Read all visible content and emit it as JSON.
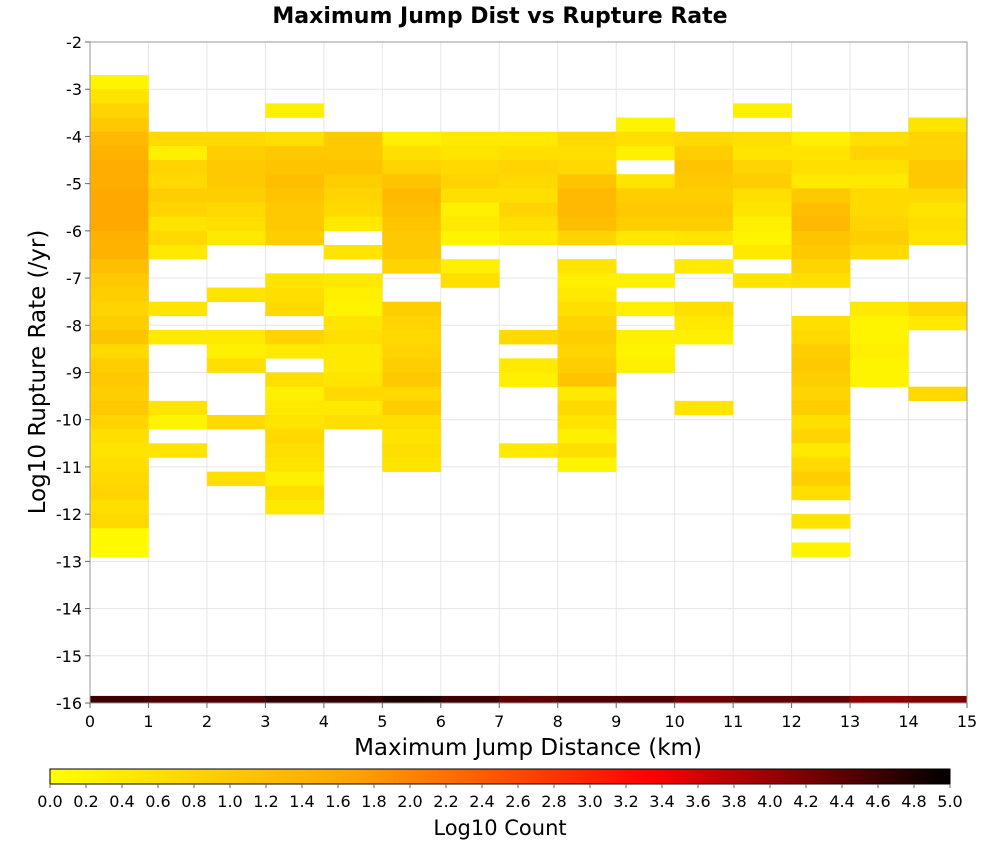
{
  "chart_data": {
    "type": "heatmap",
    "title": "Maximum Jump Dist vs Rupture Rate",
    "xlabel": "Maximum Jump Distance (km)",
    "ylabel": "Log10 Rupture Rate (/yr)",
    "xlim": [
      0,
      15
    ],
    "ylim": [
      -16,
      -2
    ],
    "x_ticks": [
      "0",
      "1",
      "2",
      "3",
      "4",
      "5",
      "6",
      "7",
      "8",
      "9",
      "10",
      "11",
      "12",
      "13",
      "14",
      "15"
    ],
    "y_ticks": [
      "-2",
      "-3",
      "-4",
      "-5",
      "-6",
      "-7",
      "-8",
      "-9",
      "-10",
      "-11",
      "-12",
      "-13",
      "-14",
      "-15",
      "-16"
    ],
    "grid": true,
    "x_bin_width": 1,
    "y_bin_height": 0.3,
    "colorbar": {
      "label": "Log10 Count",
      "min": 0.0,
      "max": 5.0,
      "ticks": [
        "0.0",
        "0.2",
        "0.4",
        "0.6",
        "0.8",
        "1.0",
        "1.2",
        "1.4",
        "1.6",
        "1.8",
        "2.0",
        "2.2",
        "2.4",
        "2.6",
        "2.8",
        "3.0",
        "3.2",
        "3.4",
        "3.6",
        "3.8",
        "4.0",
        "4.2",
        "4.4",
        "4.6",
        "4.8",
        "5.0"
      ],
      "colors": [
        "#ffff00",
        "#ffa500",
        "#ff0000",
        "#000000"
      ]
    },
    "columns": [
      {
        "x": 0,
        "y_top": -2.7,
        "values": [
          0.2,
          0.5,
          0.8,
          1.0,
          1.3,
          1.4,
          1.5,
          1.5,
          1.6,
          1.6,
          1.6,
          1.4,
          1.4,
          1.2,
          1.0,
          0.9,
          0.8,
          0.9,
          1.1,
          0.7,
          0.9,
          1.0,
          0.9,
          1.0,
          0.8,
          0.6,
          0.5,
          0.6,
          0.7,
          0.8,
          0.6,
          0.7,
          0.1,
          0.1
        ]
      },
      {
        "x": 1,
        "y_top": -3.9,
        "values": [
          0.7,
          0.3,
          0.8,
          0.7,
          0.9,
          0.8,
          0.5,
          0.7,
          0.4,
          null,
          null,
          null,
          0.5,
          null,
          0.4,
          null,
          null,
          null,
          null,
          0.5,
          0.2,
          null,
          0.5
        ]
      },
      {
        "x": 2,
        "y_top": -3.9,
        "values": [
          0.7,
          0.9,
          1.0,
          1.0,
          0.9,
          0.7,
          0.6,
          0.4,
          null,
          null,
          null,
          0.5,
          null,
          null,
          0.4,
          0.3,
          0.6,
          null,
          null,
          null,
          0.7,
          null,
          null,
          null,
          0.6
        ]
      },
      {
        "x": 3,
        "y_top": -3.3,
        "values": [
          0.3,
          null,
          0.6,
          1.0,
          1.1,
          1.2,
          1.1,
          1.0,
          1.0,
          0.9,
          null,
          null,
          0.5,
          0.6,
          0.7,
          null,
          0.8,
          0.4,
          null,
          0.6,
          0.3,
          0.4,
          0.5,
          0.7,
          0.6,
          0.5,
          0.3,
          0.6,
          0.4
        ]
      },
      {
        "x": 4,
        "y_top": -3.9,
        "values": [
          1.0,
          1.0,
          1.1,
          0.9,
          0.8,
          0.7,
          0.4,
          null,
          0.5,
          null,
          0.4,
          0.3,
          0.2,
          0.5,
          0.6,
          0.4,
          0.4,
          0.5,
          0.7,
          0.4,
          0.6
        ]
      },
      {
        "x": 5,
        "y_top": -3.9,
        "values": [
          0.3,
          0.6,
          0.8,
          1.1,
          1.3,
          1.2,
          1.1,
          1.0,
          1.0,
          0.8,
          null,
          null,
          0.9,
          0.8,
          0.7,
          0.8,
          0.9,
          1.0,
          0.7,
          0.9,
          0.6,
          0.5,
          0.6,
          0.5
        ]
      },
      {
        "x": 6,
        "y_top": -3.9,
        "values": [
          0.4,
          0.5,
          0.7,
          0.8,
          0.6,
          0.3,
          0.4,
          0.2,
          null,
          0.3,
          0.6
        ]
      },
      {
        "x": 7,
        "y_top": -3.9,
        "values": [
          0.4,
          0.6,
          0.8,
          0.7,
          0.6,
          0.8,
          0.6,
          0.4,
          null,
          null,
          null,
          null,
          null,
          null,
          0.7,
          null,
          0.4,
          0.3,
          null,
          null,
          null,
          null,
          0.4
        ]
      },
      {
        "x": 8,
        "y_top": -3.9,
        "values": [
          0.7,
          0.6,
          0.7,
          1.1,
          1.3,
          1.3,
          1.2,
          0.8,
          null,
          0.5,
          0.3,
          0.4,
          0.6,
          0.8,
          0.9,
          0.8,
          0.9,
          1.1,
          0.4,
          0.7,
          0.5,
          0.3,
          0.6,
          0.2
        ]
      },
      {
        "x": 9,
        "y_top": -3.6,
        "values": [
          0.2,
          0.6,
          0.3,
          null,
          0.5,
          0.9,
          1.0,
          0.9,
          0.4,
          null,
          null,
          0.3,
          null,
          0.3,
          null,
          0.3,
          0.2,
          0.3
        ]
      },
      {
        "x": 10,
        "y_top": -3.9,
        "values": [
          0.7,
          0.9,
          1.1,
          1.0,
          0.9,
          1.0,
          0.9,
          0.5,
          null,
          0.4,
          null,
          null,
          0.6,
          0.4,
          0.3,
          null,
          null,
          null,
          null,
          0.5
        ]
      },
      {
        "x": 11,
        "y_top": -3.3,
        "values": [
          0.3,
          null,
          0.6,
          0.5,
          0.8,
          0.9,
          0.6,
          0.5,
          0.3,
          0.2,
          0.4,
          null,
          0.5
        ]
      },
      {
        "x": 12,
        "y_top": -3.9,
        "values": [
          0.3,
          0.5,
          0.6,
          0.4,
          1.0,
          1.2,
          1.3,
          1.1,
          1.0,
          0.8,
          0.6,
          null,
          null,
          0.6,
          0.7,
          0.9,
          1.0,
          0.9,
          0.8,
          0.9,
          0.6,
          0.8,
          0.4,
          0.7,
          0.9,
          0.6,
          null,
          0.5,
          null,
          0.2
        ]
      },
      {
        "x": 13,
        "y_top": -3.9,
        "values": [
          0.6,
          0.8,
          0.6,
          0.4,
          0.7,
          0.7,
          0.8,
          0.9,
          0.7,
          null,
          null,
          null,
          0.4,
          0.2,
          0.2,
          0.3,
          0.2,
          0.2
        ]
      },
      {
        "x": 14,
        "y_top": -3.6,
        "values": [
          0.5,
          0.8,
          0.8,
          1.0,
          1.0,
          0.7,
          0.5,
          0.6,
          0.5,
          null,
          null,
          null,
          null,
          0.7,
          0.4,
          null,
          null,
          null,
          null,
          0.7
        ]
      }
    ],
    "bottom_row": {
      "y": -16,
      "values": [
        4.6,
        4.5,
        4.5,
        4.7,
        4.7,
        4.8,
        4.6,
        4.4,
        4.5,
        4.5,
        4.3,
        4.4,
        4.4,
        4.1,
        4.2
      ]
    }
  }
}
